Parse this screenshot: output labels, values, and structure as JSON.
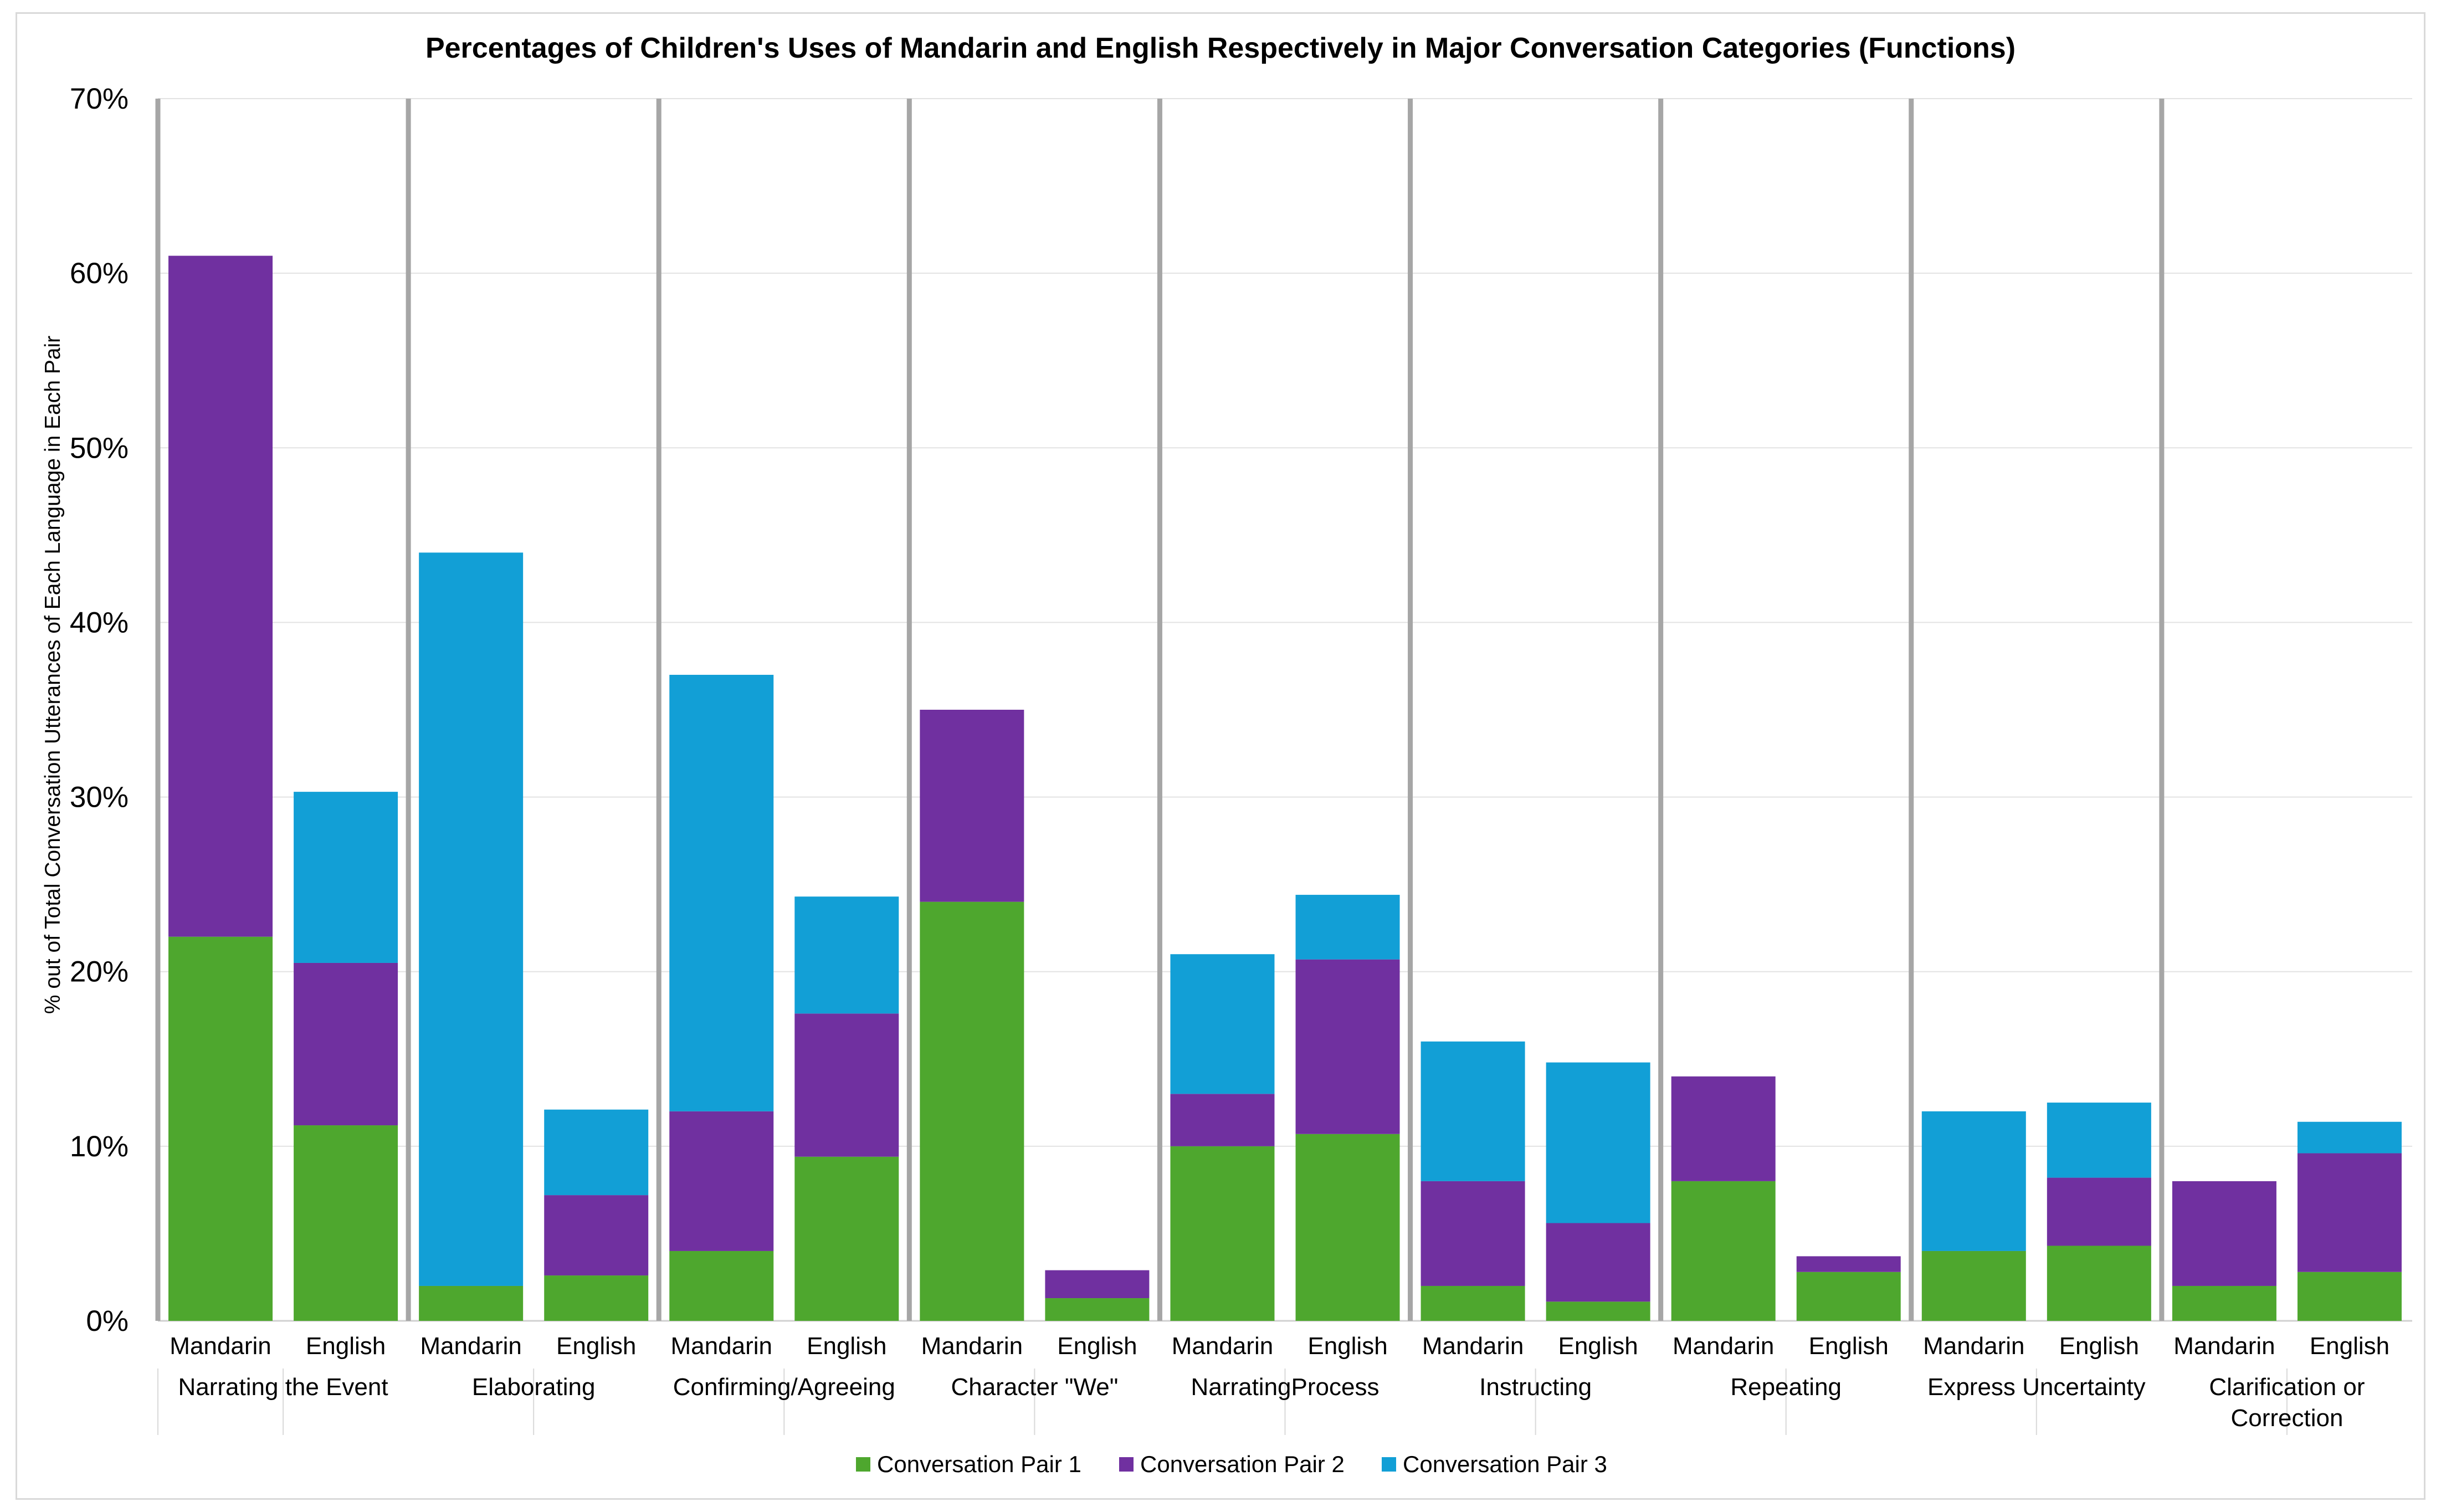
{
  "chart_data": {
    "type": "bar",
    "stacked": true,
    "title": "Percentages of Children's Uses of Mandarin and English Respectively in Major Conversation Categories (Functions)",
    "ylabel": "% out of Total Conversation Utterances of Each Language in Each Pair",
    "xlabel": "",
    "ylim": [
      0,
      70
    ],
    "yticks": [
      "0%",
      "10%",
      "20%",
      "30%",
      "40%",
      "50%",
      "60%",
      "70%"
    ],
    "grid": true,
    "legend_position": "bottom",
    "groups": [
      {
        "name": "Narrating the Event",
        "label_lines": [
          "Narrating the Event"
        ],
        "bars": [
          {
            "label": "Mandarin",
            "values": [
              22,
              39,
              0
            ]
          },
          {
            "label": "English",
            "values": [
              11.2,
              9.3,
              9.8
            ]
          }
        ]
      },
      {
        "name": "Elaborating",
        "label_lines": [
          "Elaborating"
        ],
        "bars": [
          {
            "label": "Mandarin",
            "values": [
              2,
              0,
              42
            ]
          },
          {
            "label": "English",
            "values": [
              2.6,
              4.6,
              4.9
            ]
          }
        ]
      },
      {
        "name": "Confirming/Agreeing",
        "label_lines": [
          "Confirming/Agreeing"
        ],
        "bars": [
          {
            "label": "Mandarin",
            "values": [
              4,
              8,
              25
            ]
          },
          {
            "label": "English",
            "values": [
              9.4,
              8.2,
              6.7
            ]
          }
        ]
      },
      {
        "name": "Character \"We\"",
        "label_lines": [
          "Character \"We\""
        ],
        "bars": [
          {
            "label": "Mandarin",
            "values": [
              24,
              11,
              0
            ]
          },
          {
            "label": "English",
            "values": [
              1.3,
              1.6,
              0
            ]
          }
        ]
      },
      {
        "name": "NarratingProcess",
        "label_lines": [
          "NarratingProcess"
        ],
        "bars": [
          {
            "label": "Mandarin",
            "values": [
              10,
              3,
              8
            ]
          },
          {
            "label": "English",
            "values": [
              10.7,
              10,
              3.7
            ]
          }
        ]
      },
      {
        "name": "Instructing",
        "label_lines": [
          "Instructing"
        ],
        "bars": [
          {
            "label": "Mandarin",
            "values": [
              2,
              6,
              8
            ]
          },
          {
            "label": "English",
            "values": [
              1.1,
              4.5,
              9.2
            ]
          }
        ]
      },
      {
        "name": "Repeating",
        "label_lines": [
          "Repeating"
        ],
        "bars": [
          {
            "label": "Mandarin",
            "values": [
              8,
              6,
              0
            ]
          },
          {
            "label": "English",
            "values": [
              2.8,
              0.9,
              0
            ]
          }
        ]
      },
      {
        "name": "Express Uncertainty",
        "label_lines": [
          "Express Uncertainty"
        ],
        "bars": [
          {
            "label": "Mandarin",
            "values": [
              4,
              0,
              8
            ]
          },
          {
            "label": "English",
            "values": [
              4.3,
              3.9,
              4.3
            ]
          }
        ]
      },
      {
        "name": "Clarification or Correction",
        "label_lines": [
          "Clarification or",
          "Correction"
        ],
        "bars": [
          {
            "label": "Mandarin",
            "values": [
              2,
              6,
              0
            ]
          },
          {
            "label": "English",
            "values": [
              2.8,
              6.8,
              1.8
            ]
          }
        ]
      }
    ],
    "series": [
      {
        "name": "Conversation Pair 1",
        "color": "#4ea72e"
      },
      {
        "name": "Conversation Pair 2",
        "color": "#7030a0"
      },
      {
        "name": "Conversation Pair 3",
        "color": "#129fd6"
      }
    ]
  }
}
